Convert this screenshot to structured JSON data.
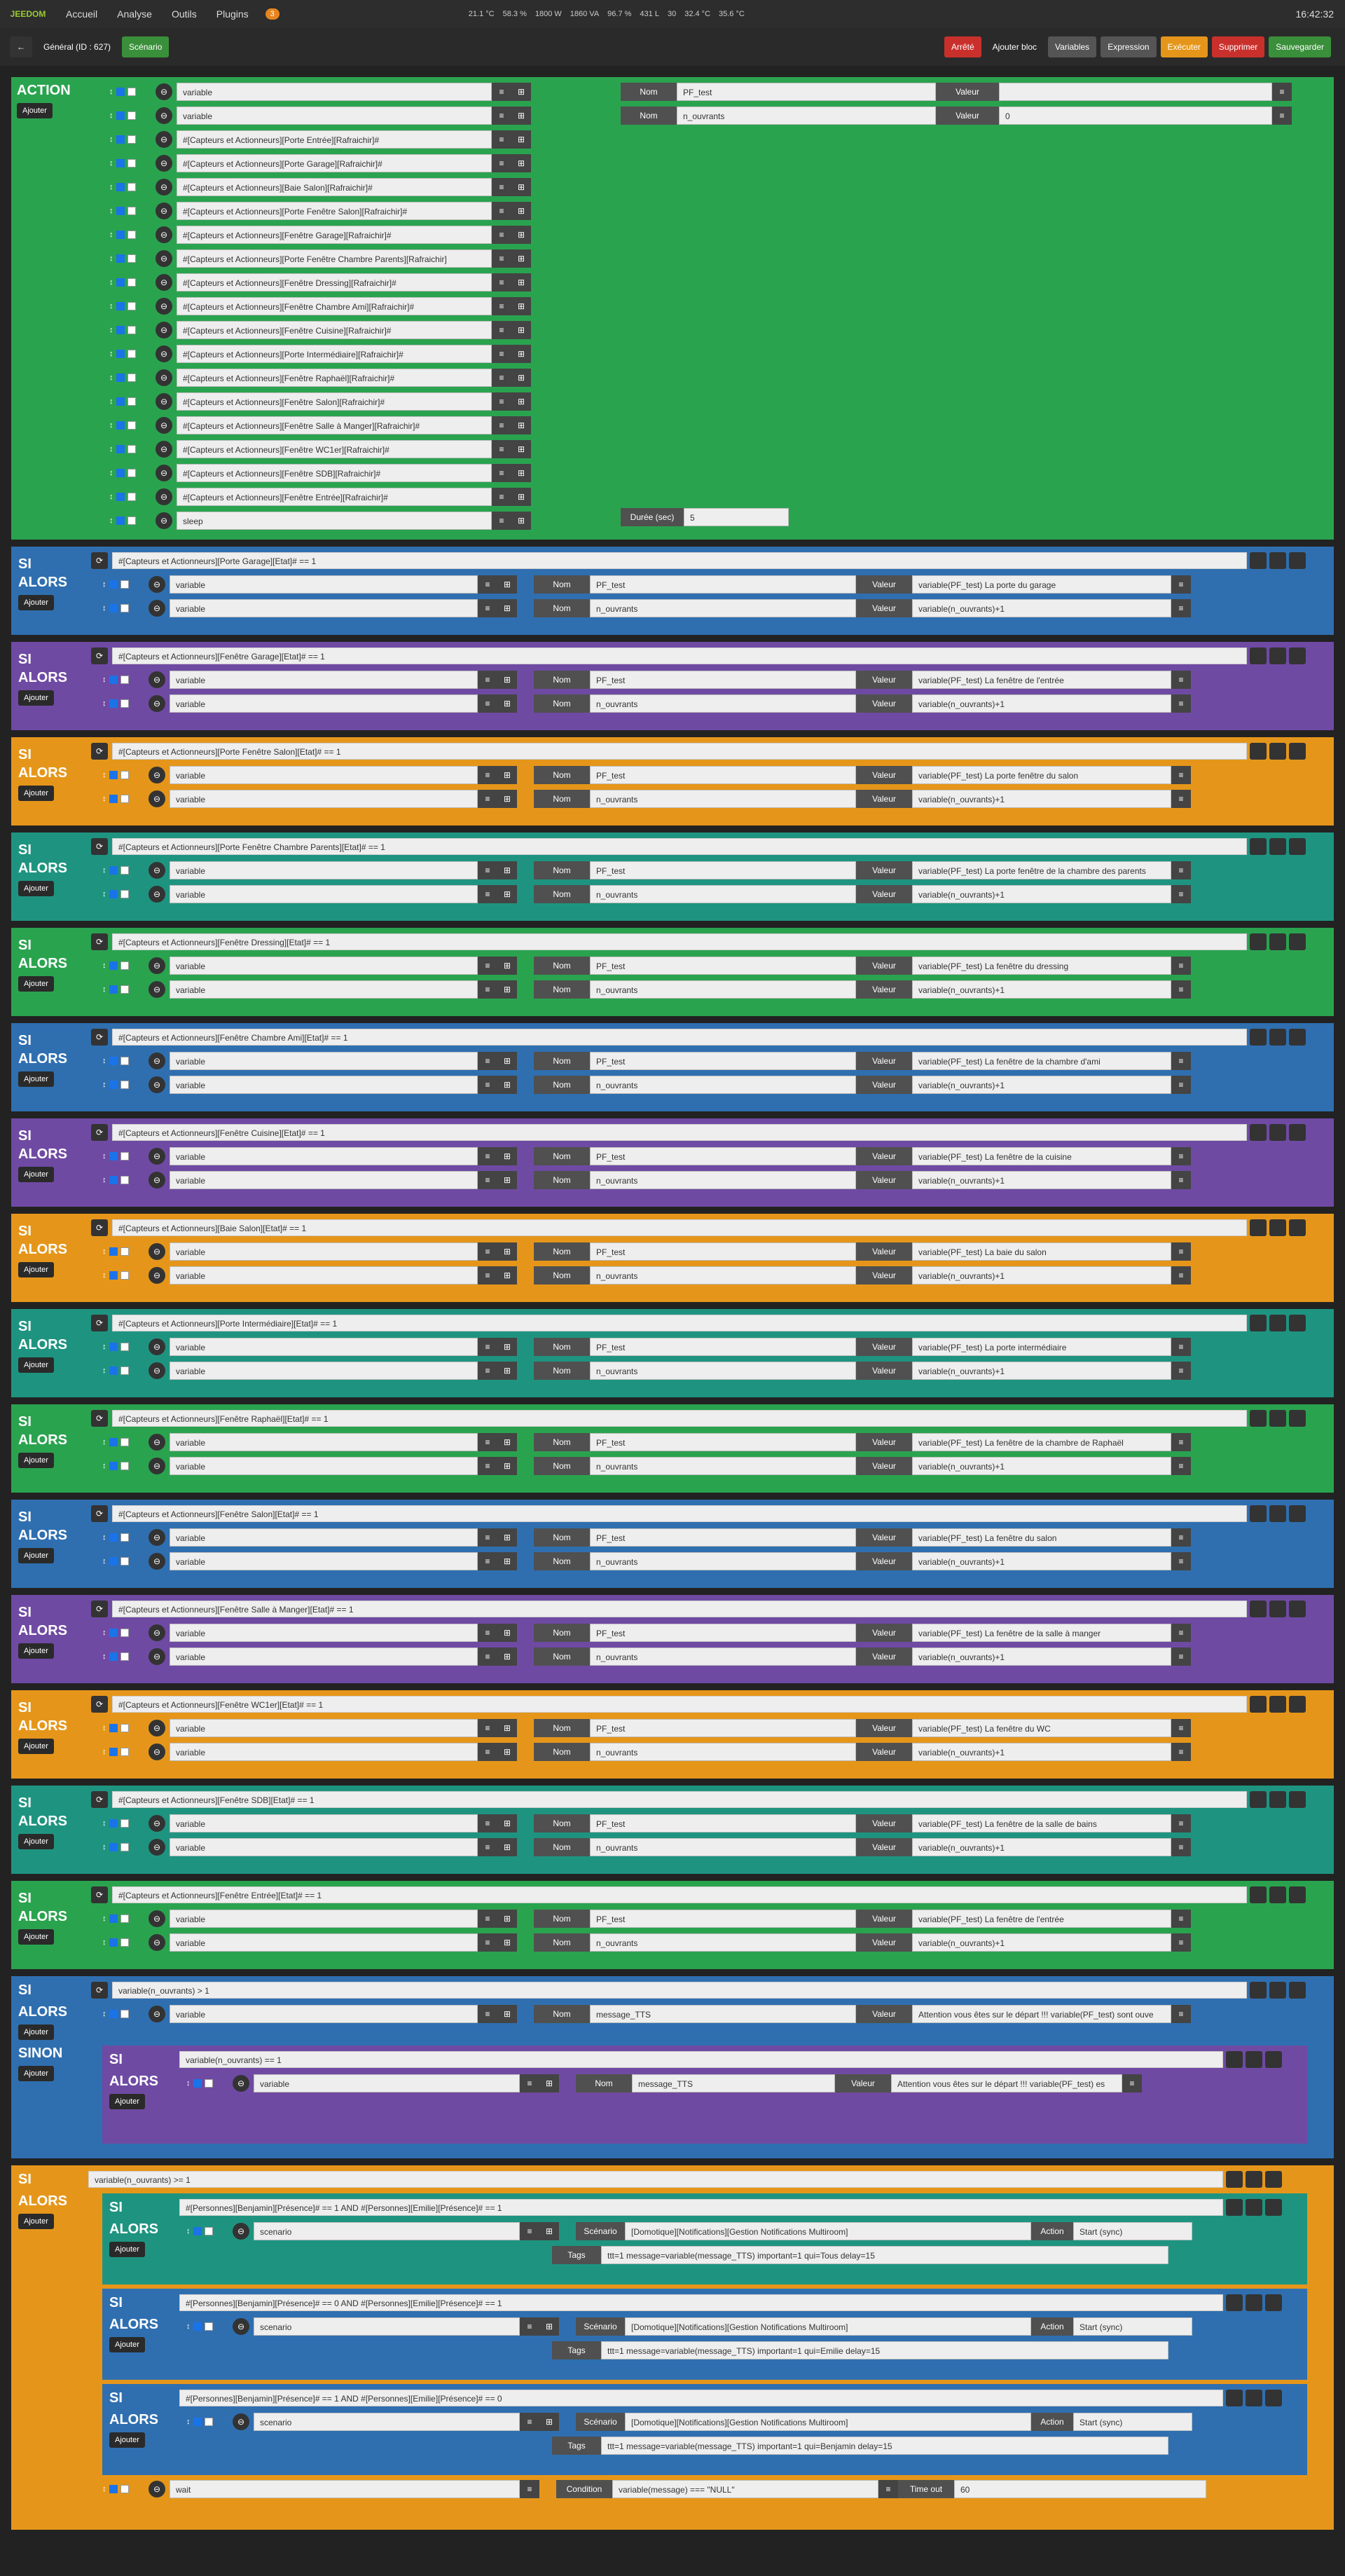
{
  "topbar": {
    "logo": "JEEDOM",
    "nav": [
      "Accueil",
      "Analyse",
      "Outils",
      "Plugins"
    ],
    "badge": "3",
    "stats": [
      "21.1 °C",
      "58.3 %",
      "1800 W",
      "1860 VA",
      "96.7 %",
      "431 L",
      "30",
      "32.4 °C",
      "35.6 °C"
    ],
    "clock": "16:42:32"
  },
  "toolbar": {
    "back": "←",
    "title": "Général (ID : 627)",
    "tab": "Scénario",
    "status": "Arrêté",
    "add_block": "Ajouter bloc",
    "variables": "Variables",
    "expression": "Expression",
    "execute": "Exécuter",
    "delete": "Supprimer",
    "save": "Sauvegarder"
  },
  "kw": {
    "action": "ACTION",
    "si": "SI",
    "alors": "ALORS",
    "sinon": "SINON",
    "ajouter": "Ajouter",
    "nom": "Nom",
    "valeur": "Valeur",
    "duree": "Durée (sec)",
    "scenario_lbl": "Scénario",
    "action_lbl": "Action",
    "tags_lbl": "Tags",
    "condition": "Condition",
    "timeout": "Time out"
  },
  "action_block": {
    "rows": [
      "variable",
      "variable",
      "#[Capteurs et Actionneurs][Porte Entrée][Rafraichir]#",
      "#[Capteurs et Actionneurs][Porte Garage][Rafraichir]#",
      "#[Capteurs et Actionneurs][Baie Salon][Rafraichir]#",
      "#[Capteurs et Actionneurs][Porte Fenêtre Salon][Rafraichir]#",
      "#[Capteurs et Actionneurs][Fenêtre Garage][Rafraichir]#",
      "#[Capteurs et Actionneurs][Porte Fenêtre Chambre Parents][Rafraichir]",
      "#[Capteurs et Actionneurs][Fenêtre Dressing][Rafraichir]#",
      "#[Capteurs et Actionneurs][Fenêtre Chambre Ami][Rafraichir]#",
      "#[Capteurs et Actionneurs][Fenêtre Cuisine][Rafraichir]#",
      "#[Capteurs et Actionneurs][Porte Intermédiaire][Rafraichir]#",
      "#[Capteurs et Actionneurs][Fenêtre Raphaël][Rafraichir]#",
      "#[Capteurs et Actionneurs][Fenêtre Salon][Rafraichir]#",
      "#[Capteurs et Actionneurs][Fenêtre Salle à Manger][Rafraichir]#",
      "#[Capteurs et Actionneurs][Fenêtre WC1er][Rafraichir]#",
      "#[Capteurs et Actionneurs][Fenêtre SDB][Rafraichir]#",
      "#[Capteurs et Actionneurs][Fenêtre Entrée][Rafraichir]#",
      "sleep"
    ],
    "var1_name": "PF_test",
    "var1_value": "",
    "var2_name": "n_ouvrants",
    "var2_value": "0",
    "sleep_value": "5"
  },
  "si_blocks": [
    {
      "color": "#2f6fb0",
      "cond": "#[Capteurs et Actionneurs][Porte Garage][Etat]# == 1",
      "v1": "variable(PF_test) La porte du garage",
      "v2": "variable(n_ouvrants)+1"
    },
    {
      "color": "#6f4aa3",
      "cond": "#[Capteurs et Actionneurs][Fenêtre Garage][Etat]# == 1",
      "v1": "variable(PF_test) La fenêtre de l'entrée",
      "v2": "variable(n_ouvrants)+1"
    },
    {
      "color": "#e5961a",
      "cond": "#[Capteurs et Actionneurs][Porte Fenêtre Salon][Etat]# == 1",
      "v1": "variable(PF_test) La porte fenêtre du salon",
      "v2": "variable(n_ouvrants)+1"
    },
    {
      "color": "#1e9480",
      "cond": "#[Capteurs et Actionneurs][Porte Fenêtre Chambre Parents][Etat]# == 1",
      "v1": "variable(PF_test) La porte fenêtre de la chambre des parents",
      "v2": "variable(n_ouvrants)+1"
    },
    {
      "color": "#2aa34f",
      "cond": "#[Capteurs et Actionneurs][Fenêtre Dressing][Etat]# == 1",
      "v1": "variable(PF_test) La fenêtre du dressing",
      "v2": "variable(n_ouvrants)+1"
    },
    {
      "color": "#2f6fb0",
      "cond": "#[Capteurs et Actionneurs][Fenêtre Chambre Ami][Etat]# == 1",
      "v1": "variable(PF_test) La fenêtre de la chambre d'ami",
      "v2": "variable(n_ouvrants)+1"
    },
    {
      "color": "#6f4aa3",
      "cond": "#[Capteurs et Actionneurs][Fenêtre Cuisine][Etat]# == 1",
      "v1": "variable(PF_test) La fenêtre de la cuisine",
      "v2": "variable(n_ouvrants)+1"
    },
    {
      "color": "#e5961a",
      "cond": "#[Capteurs et Actionneurs][Baie Salon][Etat]# == 1",
      "v1": "variable(PF_test) La baie du salon",
      "v2": "variable(n_ouvrants)+1"
    },
    {
      "color": "#1e9480",
      "cond": "#[Capteurs et Actionneurs][Porte Intermédiaire][Etat]# == 1",
      "v1": "variable(PF_test) La porte intermédiaire",
      "v2": "variable(n_ouvrants)+1"
    },
    {
      "color": "#2aa34f",
      "cond": "#[Capteurs et Actionneurs][Fenêtre Raphaël][Etat]# == 1",
      "v1": "variable(PF_test) La fenêtre de la chambre de Raphaël",
      "v2": "variable(n_ouvrants)+1"
    },
    {
      "color": "#2f6fb0",
      "cond": "#[Capteurs et Actionneurs][Fenêtre Salon][Etat]# == 1",
      "v1": "variable(PF_test) La fenêtre du salon",
      "v2": "variable(n_ouvrants)+1"
    },
    {
      "color": "#6f4aa3",
      "cond": "#[Capteurs et Actionneurs][Fenêtre Salle à Manger][Etat]# == 1",
      "v1": "variable(PF_test) La fenêtre de la salle à manger",
      "v2": "variable(n_ouvrants)+1"
    },
    {
      "color": "#e5961a",
      "cond": "#[Capteurs et Actionneurs][Fenêtre WC1er][Etat]# == 1",
      "v1": "variable(PF_test) La fenêtre du WC",
      "v2": "variable(n_ouvrants)+1"
    },
    {
      "color": "#1e9480",
      "cond": "#[Capteurs et Actionneurs][Fenêtre SDB][Etat]# == 1",
      "v1": "variable(PF_test) La fenêtre de la salle de bains",
      "v2": "variable(n_ouvrants)+1"
    },
    {
      "color": "#2aa34f",
      "cond": "#[Capteurs et Actionneurs][Fenêtre Entrée][Etat]# == 1",
      "v1": "variable(PF_test) La fenêtre de l'entrée",
      "v2": "variable(n_ouvrants)+1"
    }
  ],
  "block_tts": {
    "cond": "variable(n_ouvrants) > 1",
    "name": "message_TTS",
    "value": "Attention vous êtes sur le départ !!! variable(PF_test) sont ouve",
    "inner_cond": "variable(n_ouvrants) == 1",
    "inner_value": "Attention vous êtes sur le départ !!! variable(PF_test) es"
  },
  "block_notif": {
    "cond": "variable(n_ouvrants) >= 1",
    "subs": [
      {
        "cond": "#[Personnes][Benjamin][Présence]# == 1 AND #[Personnes][Emilie][Présence]# == 1",
        "tags": "ttt=1 message=variable(message_TTS) important=1 qui=Tous delay=15"
      },
      {
        "cond": "#[Personnes][Benjamin][Présence]# == 0 AND #[Personnes][Emilie][Présence]# == 1",
        "tags": "ttt=1 message=variable(message_TTS) important=1 qui=Emilie delay=15"
      },
      {
        "cond": "#[Personnes][Benjamin][Présence]# == 1 AND #[Personnes][Emilie][Présence]# == 0",
        "tags": "ttt=1 message=variable(message_TTS) important=1 qui=Benjamin delay=15"
      }
    ],
    "scenario_value": "[Domotique][Notifications][Gestion Notifications Multiroom]",
    "action_value": "Start (sync)",
    "wait_label": "wait",
    "wait_cond": "variable(message) === \"NULL\"",
    "wait_timeout": "60"
  }
}
